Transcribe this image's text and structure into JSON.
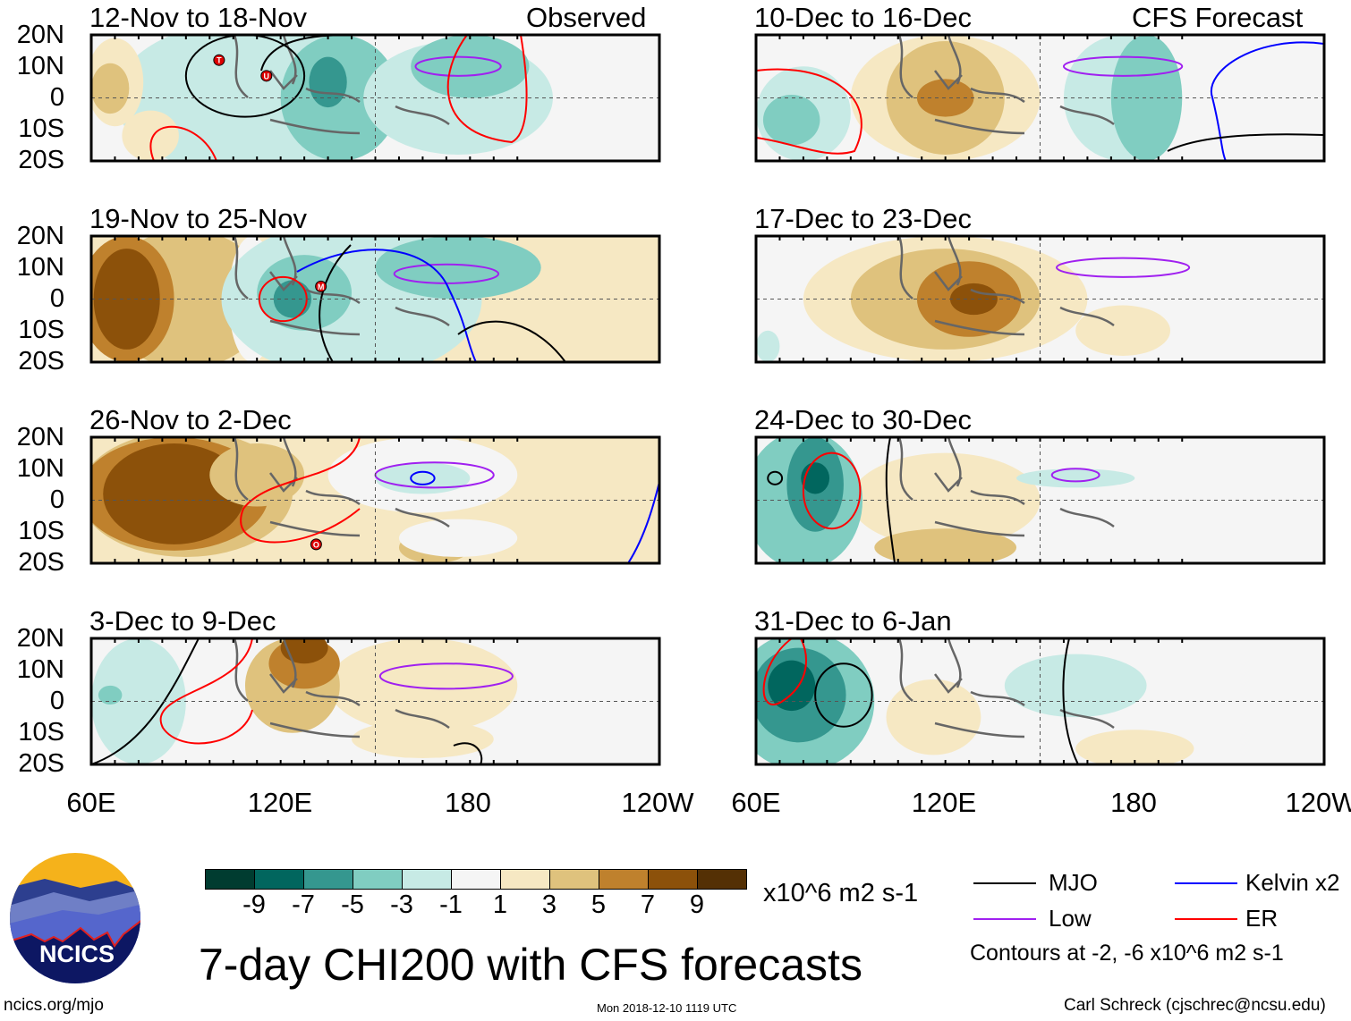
{
  "figure_title": "7-day CHI200 with CFS forecasts",
  "observed_label": "Observed",
  "forecast_label": "CFS Forecast",
  "lat_labels": [
    "20N",
    "10N",
    "0",
    "10S",
    "20S"
  ],
  "lon_labels": [
    "60E",
    "120E",
    "180",
    "120W"
  ],
  "panels": [
    {
      "title": "12-Nov to 18-Nov",
      "column": "observed",
      "storms": [
        {
          "letter": "T",
          "lon": 114,
          "lat": 12
        },
        {
          "letter": "U",
          "lon": 134,
          "lat": 7
        }
      ]
    },
    {
      "title": "19-Nov to 25-Nov",
      "column": "observed",
      "storms": [
        {
          "letter": "M",
          "lon": 157,
          "lat": 4
        }
      ]
    },
    {
      "title": "26-Nov to 2-Dec",
      "column": "observed",
      "storms": [
        {
          "letter": "O",
          "lon": 155,
          "lat": -14
        }
      ]
    },
    {
      "title": "3-Dec to 9-Dec",
      "column": "observed",
      "storms": []
    },
    {
      "title": "10-Dec to 16-Dec",
      "column": "forecast",
      "storms": []
    },
    {
      "title": "17-Dec to 23-Dec",
      "column": "forecast",
      "storms": []
    },
    {
      "title": "24-Dec to 30-Dec",
      "column": "forecast",
      "storms": []
    },
    {
      "title": "31-Dec to 6-Jan",
      "column": "forecast",
      "storms": []
    }
  ],
  "colorbar": {
    "colors": [
      "#003c30",
      "#01665e",
      "#35978f",
      "#80cdc1",
      "#c7eae5",
      "#f5f5f5",
      "#f6e8c3",
      "#dfc27d",
      "#bf812d",
      "#8c510a",
      "#543005"
    ],
    "ticks": [
      "-9",
      "-7",
      "-5",
      "-3",
      "-1",
      "1",
      "3",
      "5",
      "7",
      "9"
    ],
    "units": "x10^6 m2 s-1"
  },
  "legend": {
    "items": [
      {
        "label": "MJO",
        "color": "#000000"
      },
      {
        "label": "Kelvin x2",
        "color": "#0000ff"
      },
      {
        "label": "Low",
        "color": "#a020f0"
      },
      {
        "label": "ER",
        "color": "#ff0000"
      }
    ],
    "contours_note": "Contours at -2, -6 x10^6 m2 s-1"
  },
  "logo": {
    "text": "NCICS"
  },
  "footer": {
    "url": "ncics.org/mjo",
    "timestamp": "Mon 2018-12-10 1119 UTC",
    "author": "Carl Schreck (cjschrec@ncsu.edu)"
  }
}
